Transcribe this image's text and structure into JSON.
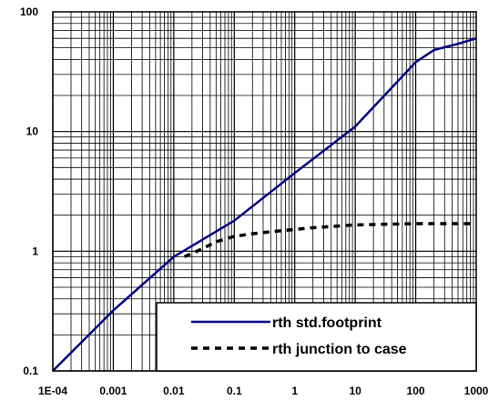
{
  "chart_data": {
    "type": "line",
    "x_scale": "log",
    "y_scale": "log",
    "xlim": [
      0.0001,
      1000
    ],
    "ylim": [
      0.1,
      100
    ],
    "grid": true,
    "legend_position": "bottom-right",
    "x_tick_labels": [
      "1E-04",
      "0.001",
      "0.01",
      "0.1",
      "1",
      "10",
      "100",
      "1000"
    ],
    "y_tick_labels": [
      "0.1",
      "1",
      "10",
      "100"
    ],
    "series": [
      {
        "name": "rth std.footprint",
        "style": "solid",
        "color": "#000080",
        "x": [
          0.0001,
          0.001,
          0.01,
          0.1,
          1,
          10,
          100,
          200,
          500,
          1000
        ],
        "y": [
          0.1,
          0.32,
          0.9,
          1.8,
          4.5,
          11,
          38,
          48,
          54,
          60
        ]
      },
      {
        "name": "rth junction to case",
        "style": "dashed",
        "color": "#000000",
        "x": [
          0.015,
          0.03,
          0.05,
          0.1,
          0.2,
          0.5,
          1,
          2,
          5,
          10,
          100,
          1000
        ],
        "y": [
          0.9,
          1.05,
          1.2,
          1.33,
          1.4,
          1.47,
          1.52,
          1.57,
          1.62,
          1.66,
          1.7,
          1.7
        ]
      }
    ]
  }
}
